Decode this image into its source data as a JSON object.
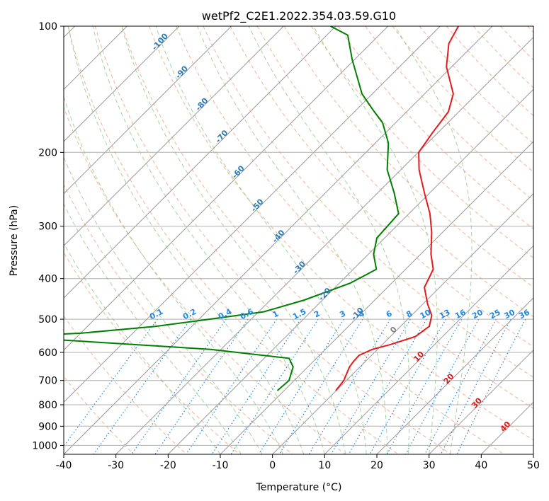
{
  "chart_data": {
    "type": "line",
    "title": "wetPf2_C2E1.2022.354.03.59.G10",
    "xlabel": "Temperature (°C)",
    "ylabel": "Pressure (hPa)",
    "xlim": [
      -40,
      50
    ],
    "ylim": [
      1050,
      100
    ],
    "y_scale": "log",
    "x_ticks": [
      -40,
      -30,
      -20,
      -10,
      0,
      10,
      20,
      30,
      40,
      50
    ],
    "y_ticks": [
      100,
      200,
      300,
      400,
      500,
      600,
      700,
      800,
      900,
      1000
    ],
    "grid": true,
    "series": [
      {
        "color": "#e41a1c",
        "points": [
          [
            -0.1,
            740
          ],
          [
            -0.5,
            700
          ],
          [
            -2.0,
            650
          ],
          [
            -2.3,
            630
          ],
          [
            -2.4,
            610
          ],
          [
            -1.0,
            590
          ],
          [
            1.5,
            575
          ],
          [
            4.8,
            550
          ],
          [
            5.5,
            520
          ],
          [
            3.9,
            490
          ],
          [
            0.9,
            460
          ],
          [
            -2.9,
            420
          ],
          [
            -4.7,
            380
          ],
          [
            -8.0,
            350
          ],
          [
            -12.1,
            310
          ],
          [
            -16.0,
            280
          ],
          [
            -21.0,
            250
          ],
          [
            -26.5,
            220
          ],
          [
            -29.9,
            200
          ],
          [
            -31.0,
            180
          ],
          [
            -32.0,
            160
          ],
          [
            -34.5,
            145
          ],
          [
            -41.0,
            125
          ],
          [
            -45.0,
            110
          ],
          [
            -46.5,
            100
          ]
        ]
      },
      {
        "color": "#008000",
        "points": [
          [
            -11.3,
            740
          ],
          [
            -11.0,
            700
          ],
          [
            -12.8,
            650
          ],
          [
            -15.2,
            620
          ],
          [
            -32.0,
            590
          ],
          [
            -73.5,
            550
          ],
          [
            -60.0,
            540
          ],
          [
            -47.0,
            520
          ],
          [
            -38.0,
            500
          ],
          [
            -29.0,
            480
          ],
          [
            -23.5,
            450
          ],
          [
            -17.9,
            410
          ],
          [
            -15.6,
            380
          ],
          [
            -19.0,
            350
          ],
          [
            -21.5,
            320
          ],
          [
            -22.0,
            280
          ],
          [
            -26.8,
            250
          ],
          [
            -32.6,
            220
          ],
          [
            -37.5,
            190
          ],
          [
            -42.5,
            170
          ],
          [
            -46.2,
            160
          ],
          [
            -52.0,
            145
          ],
          [
            -60.5,
            120
          ],
          [
            -66.0,
            105
          ],
          [
            -71.0,
            100
          ]
        ]
      }
    ],
    "dry_adiabat_labels": [
      "-100",
      "-90",
      "-80",
      "-70",
      "-60",
      "-50",
      "-40",
      "-30",
      "-20",
      "-10",
      "0",
      "10",
      "20",
      "30",
      "40"
    ],
    "mixing_ratio_labels": [
      "0.1",
      "0.2",
      "0.4",
      "0.6",
      "1",
      "1.5",
      "2",
      "3",
      "4",
      "6",
      "8",
      "10",
      "13",
      "16",
      "20",
      "25",
      "30",
      "36"
    ]
  },
  "colors": {
    "temperature": "#e41a1c",
    "dewpoint": "#008000",
    "dry_adiabat": "#f4a582",
    "moist_adiabat": "#8fc98f",
    "mixing_ratio": "#1e88e5",
    "isotherm": "#9a9a9a"
  }
}
